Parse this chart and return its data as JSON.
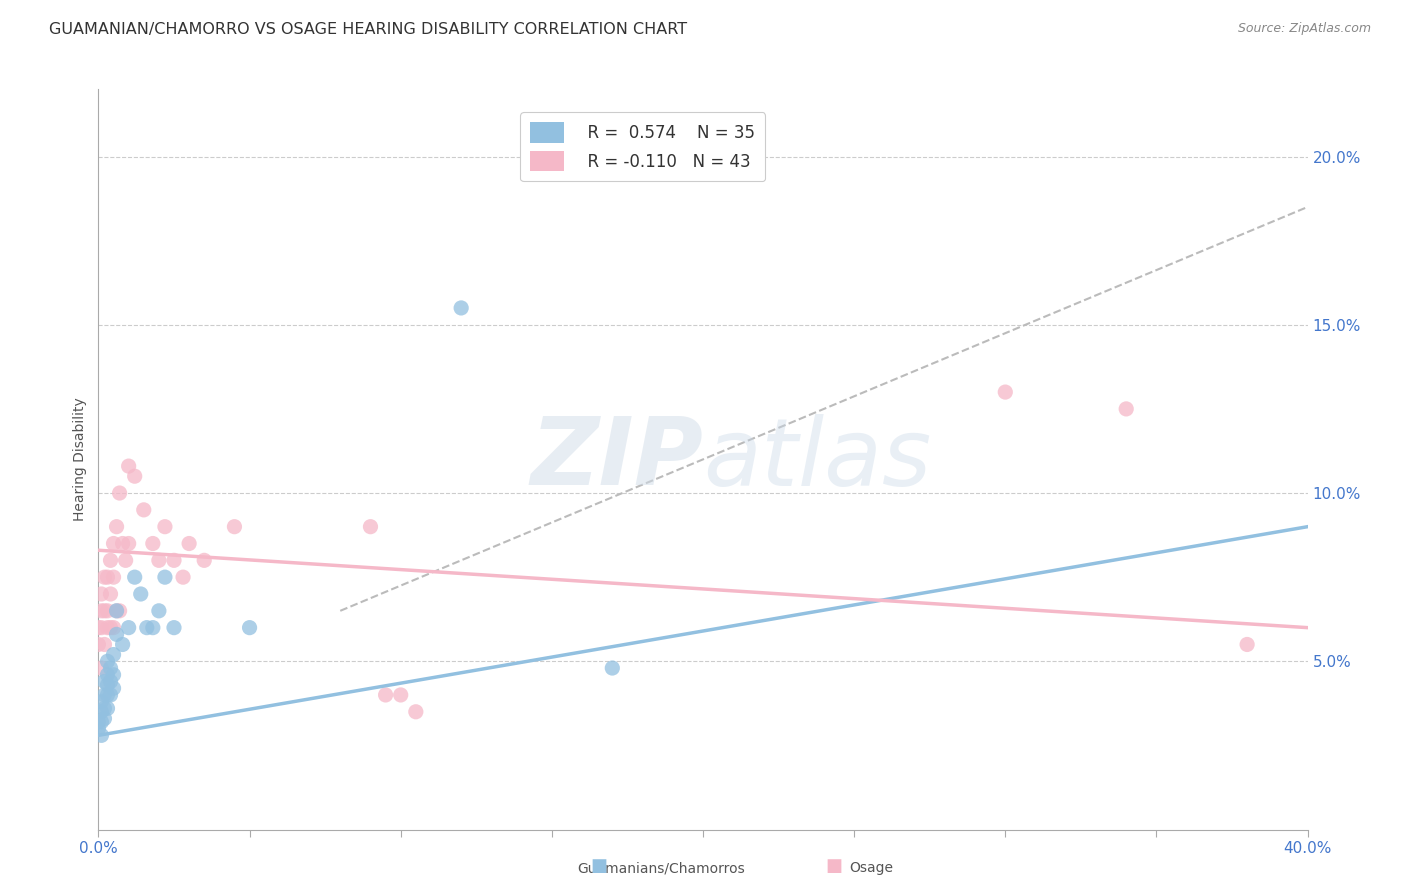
{
  "title": "GUAMANIAN/CHAMORRO VS OSAGE HEARING DISABILITY CORRELATION CHART",
  "source": "Source: ZipAtlas.com",
  "ylabel": "Hearing Disability",
  "right_yticks": [
    "5.0%",
    "10.0%",
    "15.0%",
    "20.0%"
  ],
  "right_ytick_vals": [
    0.05,
    0.1,
    0.15,
    0.2
  ],
  "legend_blue_r": "R =  0.574",
  "legend_blue_n": "N = 35",
  "legend_pink_r": "R = -0.110",
  "legend_pink_n": "N = 43",
  "legend_labels": [
    "Guamanians/Chamorros",
    "Osage"
  ],
  "blue_color": "#92c0e0",
  "pink_color": "#f5b8c8",
  "blue_scatter": {
    "x": [
      0.0,
      0.0,
      0.001,
      0.001,
      0.001,
      0.001,
      0.002,
      0.002,
      0.002,
      0.002,
      0.003,
      0.003,
      0.003,
      0.003,
      0.003,
      0.004,
      0.004,
      0.004,
      0.005,
      0.005,
      0.005,
      0.006,
      0.006,
      0.008,
      0.01,
      0.012,
      0.014,
      0.016,
      0.018,
      0.02,
      0.022,
      0.025,
      0.05,
      0.12,
      0.17
    ],
    "y": [
      0.03,
      0.032,
      0.028,
      0.032,
      0.035,
      0.038,
      0.033,
      0.036,
      0.04,
      0.044,
      0.036,
      0.04,
      0.043,
      0.046,
      0.05,
      0.04,
      0.044,
      0.048,
      0.042,
      0.046,
      0.052,
      0.058,
      0.065,
      0.055,
      0.06,
      0.075,
      0.07,
      0.06,
      0.06,
      0.065,
      0.075,
      0.06,
      0.06,
      0.155,
      0.048
    ]
  },
  "pink_scatter": {
    "x": [
      0.0,
      0.0,
      0.001,
      0.001,
      0.001,
      0.001,
      0.002,
      0.002,
      0.002,
      0.003,
      0.003,
      0.003,
      0.004,
      0.004,
      0.004,
      0.005,
      0.005,
      0.005,
      0.006,
      0.006,
      0.007,
      0.007,
      0.008,
      0.009,
      0.01,
      0.01,
      0.012,
      0.015,
      0.018,
      0.02,
      0.022,
      0.025,
      0.028,
      0.03,
      0.035,
      0.045,
      0.09,
      0.095,
      0.1,
      0.105,
      0.3,
      0.34,
      0.38
    ],
    "y": [
      0.055,
      0.06,
      0.048,
      0.06,
      0.065,
      0.07,
      0.055,
      0.065,
      0.075,
      0.06,
      0.065,
      0.075,
      0.06,
      0.07,
      0.08,
      0.06,
      0.075,
      0.085,
      0.065,
      0.09,
      0.065,
      0.1,
      0.085,
      0.08,
      0.085,
      0.108,
      0.105,
      0.095,
      0.085,
      0.08,
      0.09,
      0.08,
      0.075,
      0.085,
      0.08,
      0.09,
      0.09,
      0.04,
      0.04,
      0.035,
      0.13,
      0.125,
      0.055
    ]
  },
  "blue_line": {
    "x0": 0.0,
    "y0": 0.028,
    "x1": 0.4,
    "y1": 0.09
  },
  "pink_line": {
    "x0": 0.0,
    "y0": 0.083,
    "x1": 0.4,
    "y1": 0.06
  },
  "gray_dash_line": {
    "x0": 0.08,
    "y0": 0.065,
    "x1": 0.4,
    "y1": 0.185
  },
  "xlim": [
    0.0,
    0.4
  ],
  "ylim": [
    0.0,
    0.22
  ],
  "xtick_positions": [
    0.0,
    0.05,
    0.1,
    0.15,
    0.2,
    0.25,
    0.3,
    0.35,
    0.4
  ],
  "background_color": "#ffffff",
  "grid_color": "#cccccc",
  "title_fontsize": 11.5,
  "watermark_text": "ZIP atlas"
}
